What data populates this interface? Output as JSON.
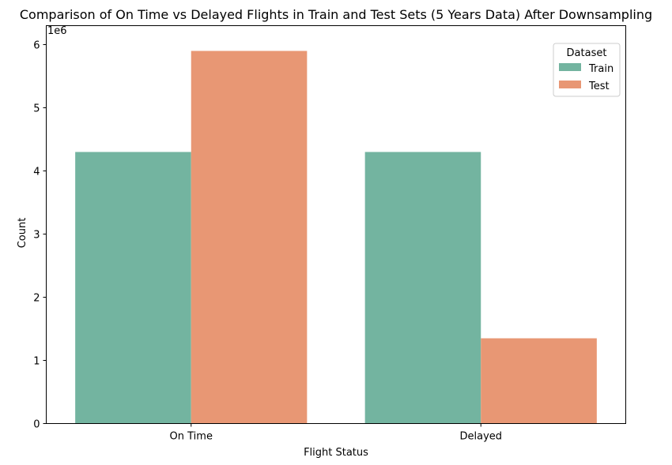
{
  "chart_data": {
    "type": "bar",
    "title": "Comparison of On Time vs Delayed Flights in Train and Test Sets (5 Years Data) After Downsampling",
    "xlabel": "Flight Status",
    "ylabel": "Count",
    "y_multiplier_label": "1e6",
    "categories": [
      "On Time",
      "Delayed"
    ],
    "series": [
      {
        "name": "Train",
        "values": [
          4300000,
          4300000
        ],
        "color": "#73b4a0"
      },
      {
        "name": "Test",
        "values": [
          5900000,
          1350000
        ],
        "color": "#e89774"
      }
    ],
    "ylim": [
      0,
      6300000
    ],
    "yticks": [
      0,
      1000000,
      2000000,
      3000000,
      4000000,
      5000000,
      6000000
    ],
    "ytick_labels": [
      "0",
      "1",
      "2",
      "3",
      "4",
      "5",
      "6"
    ],
    "legend": {
      "title": "Dataset",
      "placement": "top-right"
    },
    "grid": false
  }
}
